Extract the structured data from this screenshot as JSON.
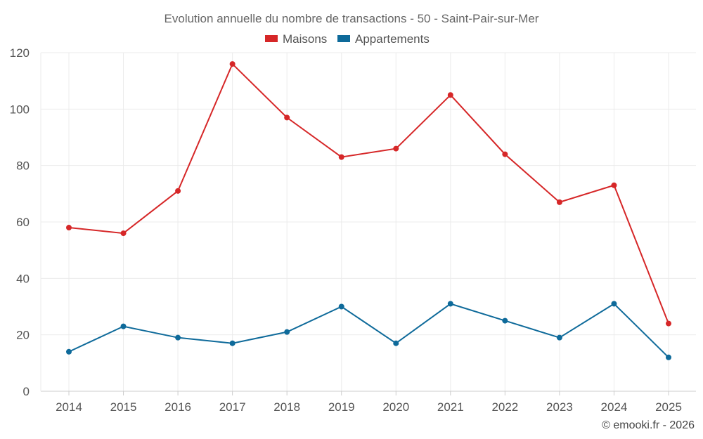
{
  "chart_data": {
    "type": "line",
    "title": "Evolution annuelle du nombre de transactions - 50 - Saint-Pair-sur-Mer",
    "xlabel": "",
    "ylabel": "",
    "categories": [
      "2014",
      "2015",
      "2016",
      "2017",
      "2018",
      "2019",
      "2020",
      "2021",
      "2022",
      "2023",
      "2024",
      "2025"
    ],
    "ylim": [
      0,
      120
    ],
    "yticks": [
      0,
      20,
      40,
      60,
      80,
      100,
      120
    ],
    "grid": true,
    "legend_position": "top-center",
    "series": [
      {
        "name": "Maisons",
        "color": "#d62728",
        "values": [
          58,
          56,
          71,
          116,
          97,
          83,
          86,
          105,
          84,
          67,
          73,
          24
        ]
      },
      {
        "name": "Appartements",
        "color": "#0e6a9a",
        "values": [
          14,
          23,
          19,
          17,
          21,
          30,
          17,
          31,
          25,
          19,
          31,
          12
        ]
      }
    ]
  },
  "credit": "© emooki.fr - 2026"
}
